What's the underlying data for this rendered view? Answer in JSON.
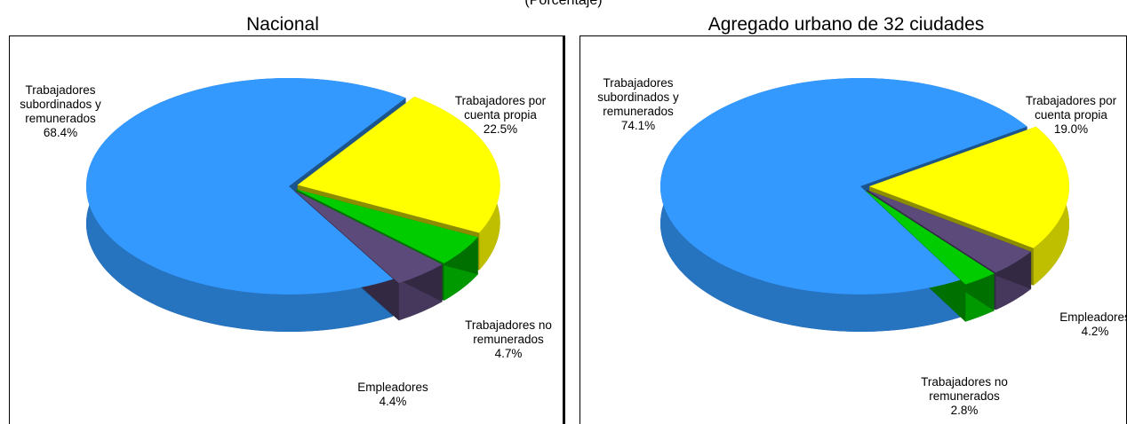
{
  "subtitle": "(Porcentaje)",
  "chart_data": [
    {
      "type": "pie",
      "title": "Nacional",
      "categories": [
        "Trabajadores subordinados y remunerados",
        "Trabajadores por cuenta propia",
        "Trabajadores no remunerados",
        "Empleadores"
      ],
      "values": [
        68.4,
        22.5,
        4.7,
        4.4
      ],
      "value_labels": [
        "68.4%",
        "22.5%",
        "4.7%",
        "4.4%"
      ],
      "colors": [
        "#3399ff",
        "#ffff00",
        "#00cc00",
        "#5c4a7a"
      ]
    },
    {
      "type": "pie",
      "title": "Agregado urbano de 32 ciudades",
      "categories": [
        "Trabajadores subordinados y remunerados",
        "Trabajadores por cuenta propia",
        "Empleadores",
        "Trabajadores no remunerados"
      ],
      "values": [
        74.1,
        19.0,
        4.2,
        2.8
      ],
      "value_labels": [
        "74.1%",
        "19.0%",
        "4.2%",
        "2.8%"
      ],
      "colors": [
        "#3399ff",
        "#ffff00",
        "#5c4a7a",
        "#00cc00"
      ]
    }
  ]
}
